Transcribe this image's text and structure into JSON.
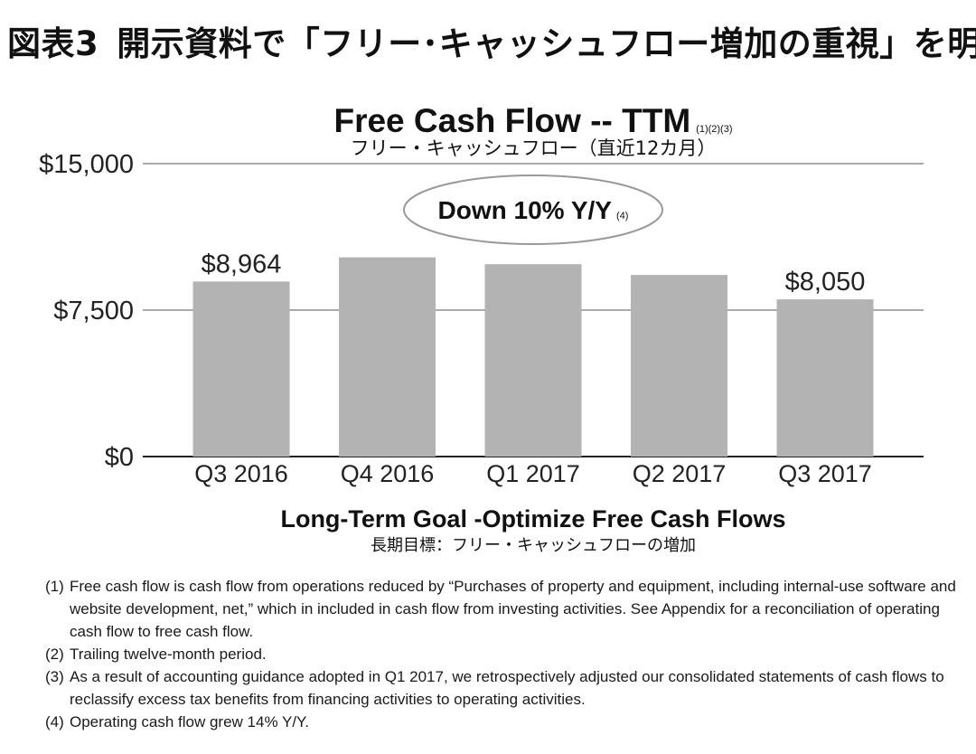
{
  "figure": {
    "label": "図表3",
    "title": "開示資料で「フリー･キャッシュフロー増加の重視」を明言"
  },
  "chart_data": {
    "type": "bar",
    "title": "Free Cash Flow -- TTM",
    "title_marks": "(1)(2)(3)",
    "subtitle": "フリー・キャッシュフロー（直近12カ月）",
    "categories": [
      "Q3 2016",
      "Q4 2016",
      "Q1 2017",
      "Q2 2017",
      "Q3 2017"
    ],
    "values": [
      8964,
      10200,
      9850,
      9300,
      8050
    ],
    "data_labels": [
      "$8,964",
      "",
      "",
      "",
      "$8,050"
    ],
    "ylim": [
      0,
      15000
    ],
    "ytick_values": [
      0,
      7500,
      15000
    ],
    "yticks": [
      "$0",
      "$7,500",
      "$15,000"
    ],
    "grid": true,
    "bar_color": "#b3b3b3",
    "annotation": {
      "text": "Down 10% Y/Y",
      "mark": "(4)"
    },
    "xlabel": "Long-Term Goal -Optimize Free Cash Flows",
    "xlabel_sub": "長期目標：フリー・キャッシュフローの増加"
  },
  "footnotes": [
    {
      "mark": "(1)",
      "text": "Free cash flow is cash flow from operations reduced by “Purchases of property and equipment, including internal-use software and website development, net,” which in included in cash flow from investing activities. See Appendix for a reconciliation of operating cash flow to free cash flow."
    },
    {
      "mark": "(2)",
      "text": "Trailing twelve-month period."
    },
    {
      "mark": "(3)",
      "text": "As a result of accounting guidance adopted in Q1 2017, we retrospectively adjusted our consolidated statements of cash flows to reclassify excess tax benefits from financing activities to operating activities."
    },
    {
      "mark": "(4)",
      "text": "Operating cash flow grew 14% Y/Y."
    }
  ]
}
